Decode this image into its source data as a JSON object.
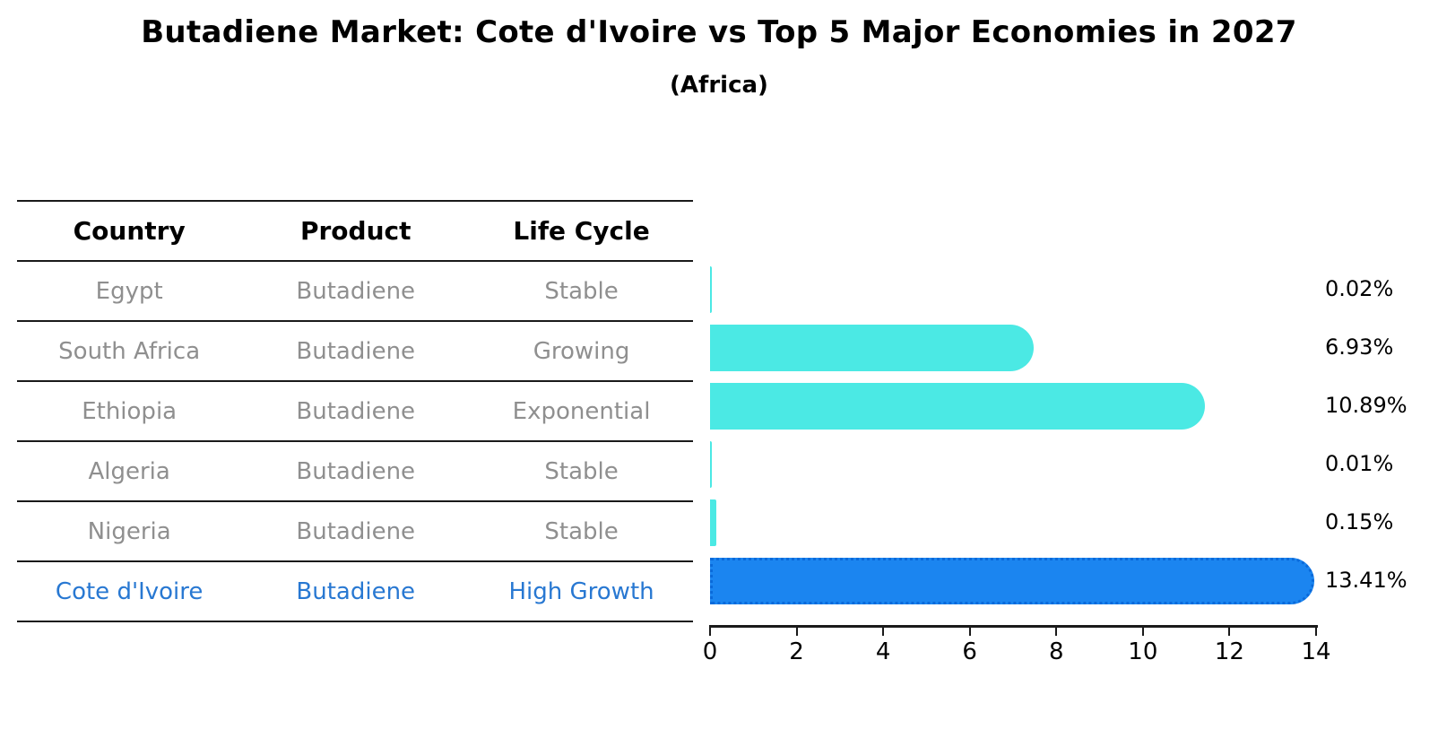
{
  "title": "Butadiene Market: Cote d'Ivoire vs Top 5 Major Economies in 2027",
  "subtitle": "(Africa)",
  "table": {
    "headers": [
      "Country",
      "Product",
      "Life Cycle"
    ],
    "rows": [
      {
        "country": "Egypt",
        "product": "Butadiene",
        "life_cycle": "Stable"
      },
      {
        "country": "South Africa",
        "product": "Butadiene",
        "life_cycle": "Growing"
      },
      {
        "country": "Ethiopia",
        "product": "Butadiene",
        "life_cycle": "Exponential"
      },
      {
        "country": "Algeria",
        "product": "Butadiene",
        "life_cycle": "Stable"
      },
      {
        "country": "Nigeria",
        "product": "Butadiene",
        "life_cycle": "Stable"
      },
      {
        "country": "Cote d'Ivoire",
        "product": "Butadiene",
        "life_cycle": "High Growth"
      }
    ],
    "highlight_row": 5
  },
  "chart_data": {
    "type": "bar",
    "orientation": "horizontal",
    "title": "Butadiene Market: Cote d'Ivoire vs Top 5 Major Economies in 2027",
    "subtitle": "(Africa)",
    "categories": [
      "Egypt",
      "South Africa",
      "Ethiopia",
      "Algeria",
      "Nigeria",
      "Cote d'Ivoire"
    ],
    "values": [
      0.02,
      6.93,
      10.89,
      0.01,
      0.15,
      13.41
    ],
    "value_labels": [
      "0.02%",
      "6.93%",
      "10.89%",
      "0.01%",
      "0.15%",
      "13.41%"
    ],
    "xlim": [
      0,
      14
    ],
    "x_ticks": [
      "0",
      "2",
      "4",
      "6",
      "8",
      "10",
      "12",
      "14"
    ],
    "xlabel": "",
    "ylabel": "",
    "grid": false,
    "legend": false,
    "highlight_index": 5,
    "bar_color": "#4be9e4",
    "highlight_bar_color": "#1b85f0",
    "highlight_edge_color": "#0a6ada"
  },
  "colors": {
    "row_text": "#8f8f8f",
    "highlight_text": "#2878d2",
    "header_text": "#000000",
    "axis_line": "#1a1a1a"
  }
}
